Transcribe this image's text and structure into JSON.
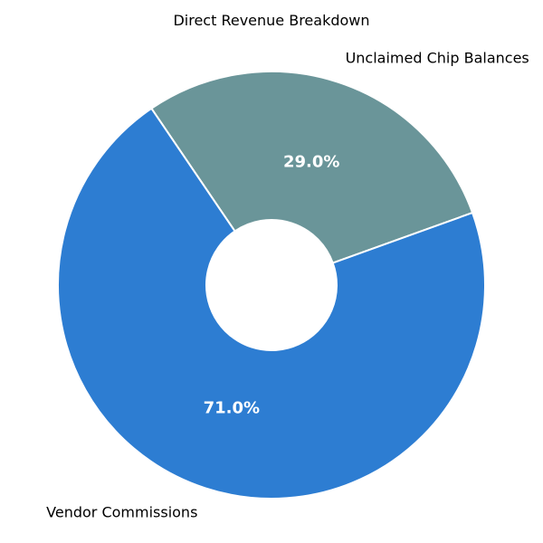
{
  "chart_data": {
    "type": "pie",
    "title": "Direct Revenue Breakdown",
    "donut": true,
    "slices": [
      {
        "label": "Unclaimed Chip Balances",
        "value": 29.0,
        "percent_label": "29.0%",
        "color": "#6a9599"
      },
      {
        "label": "Vendor Commissions",
        "value": 71.0,
        "percent_label": "71.0%",
        "color": "#2d7dd2"
      }
    ],
    "edge_color": "#ffffff"
  }
}
